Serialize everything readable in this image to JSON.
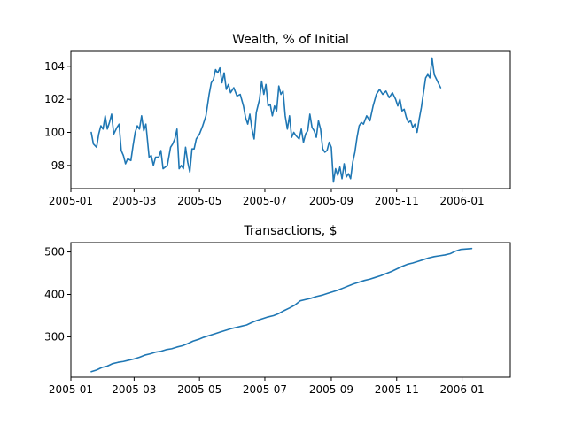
{
  "figure": {
    "background": "#ffffff",
    "line_color": "#1f77b4"
  },
  "chart_data": [
    {
      "type": "line",
      "title": "Wealth, % of Initial",
      "xlabel": "",
      "ylabel": "",
      "grid": false,
      "xlim": [
        "2005-01-01",
        "2006-02-15"
      ],
      "ylim": [
        96.6,
        104.9
      ],
      "x_ticks": [
        "2005-01",
        "2005-03",
        "2005-05",
        "2005-07",
        "2005-09",
        "2005-11",
        "2006-01"
      ],
      "y_ticks": [
        98,
        100,
        102,
        104
      ],
      "series": [
        {
          "name": "",
          "points": [
            [
              "2005-01-20",
              100.0
            ],
            [
              "2005-01-22",
              99.3
            ],
            [
              "2005-01-25",
              99.1
            ],
            [
              "2005-01-27",
              99.9
            ],
            [
              "2005-01-29",
              100.4
            ],
            [
              "2005-01-31",
              100.2
            ],
            [
              "2005-02-02",
              101.0
            ],
            [
              "2005-02-04",
              100.2
            ],
            [
              "2005-02-06",
              100.6
            ],
            [
              "2005-02-08",
              101.1
            ],
            [
              "2005-02-10",
              99.9
            ],
            [
              "2005-02-13",
              100.3
            ],
            [
              "2005-02-15",
              100.5
            ],
            [
              "2005-02-17",
              98.9
            ],
            [
              "2005-02-19",
              98.6
            ],
            [
              "2005-02-21",
              98.1
            ],
            [
              "2005-02-23",
              98.4
            ],
            [
              "2005-02-26",
              98.3
            ],
            [
              "2005-02-28",
              99.2
            ],
            [
              "2005-03-02",
              100.0
            ],
            [
              "2005-03-04",
              100.4
            ],
            [
              "2005-03-06",
              100.2
            ],
            [
              "2005-03-08",
              101.0
            ],
            [
              "2005-03-10",
              100.1
            ],
            [
              "2005-03-12",
              100.5
            ],
            [
              "2005-03-15",
              98.5
            ],
            [
              "2005-03-17",
              98.6
            ],
            [
              "2005-03-19",
              98.0
            ],
            [
              "2005-03-21",
              98.5
            ],
            [
              "2005-03-24",
              98.5
            ],
            [
              "2005-03-26",
              98.9
            ],
            [
              "2005-03-28",
              97.8
            ],
            [
              "2005-03-30",
              97.9
            ],
            [
              "2005-04-01",
              98.0
            ],
            [
              "2005-04-04",
              99.1
            ],
            [
              "2005-04-06",
              99.3
            ],
            [
              "2005-04-08",
              99.6
            ],
            [
              "2005-04-10",
              100.2
            ],
            [
              "2005-04-12",
              97.8
            ],
            [
              "2005-04-14",
              98.0
            ],
            [
              "2005-04-16",
              97.8
            ],
            [
              "2005-04-18",
              99.1
            ],
            [
              "2005-04-20",
              98.2
            ],
            [
              "2005-04-22",
              97.6
            ],
            [
              "2005-04-24",
              99.0
            ],
            [
              "2005-04-26",
              99.0
            ],
            [
              "2005-04-28",
              99.6
            ],
            [
              "2005-05-01",
              99.9
            ],
            [
              "2005-05-04",
              100.4
            ],
            [
              "2005-05-07",
              101.0
            ],
            [
              "2005-05-10",
              102.3
            ],
            [
              "2005-05-12",
              103.0
            ],
            [
              "2005-05-14",
              103.2
            ],
            [
              "2005-05-16",
              103.8
            ],
            [
              "2005-05-18",
              103.6
            ],
            [
              "2005-05-20",
              103.9
            ],
            [
              "2005-05-22",
              103.0
            ],
            [
              "2005-05-24",
              103.6
            ],
            [
              "2005-05-26",
              102.6
            ],
            [
              "2005-05-28",
              102.9
            ],
            [
              "2005-05-30",
              102.4
            ],
            [
              "2005-06-02",
              102.7
            ],
            [
              "2005-06-05",
              102.2
            ],
            [
              "2005-06-08",
              102.3
            ],
            [
              "2005-06-11",
              101.6
            ],
            [
              "2005-06-13",
              100.9
            ],
            [
              "2005-06-15",
              100.5
            ],
            [
              "2005-06-17",
              101.1
            ],
            [
              "2005-06-19",
              100.2
            ],
            [
              "2005-06-21",
              99.6
            ],
            [
              "2005-06-23",
              101.2
            ],
            [
              "2005-06-26",
              102.0
            ],
            [
              "2005-06-28",
              103.1
            ],
            [
              "2005-06-30",
              102.3
            ],
            [
              "2005-07-02",
              102.9
            ],
            [
              "2005-07-04",
              101.6
            ],
            [
              "2005-07-06",
              101.7
            ],
            [
              "2005-07-08",
              101.0
            ],
            [
              "2005-07-10",
              101.6
            ],
            [
              "2005-07-12",
              101.3
            ],
            [
              "2005-07-14",
              102.8
            ],
            [
              "2005-07-16",
              102.3
            ],
            [
              "2005-07-18",
              102.5
            ],
            [
              "2005-07-20",
              101.0
            ],
            [
              "2005-07-22",
              100.2
            ],
            [
              "2005-07-24",
              101.0
            ],
            [
              "2005-07-26",
              99.7
            ],
            [
              "2005-07-28",
              100.0
            ],
            [
              "2005-07-30",
              99.8
            ],
            [
              "2005-08-02",
              99.6
            ],
            [
              "2005-08-04",
              100.2
            ],
            [
              "2005-08-06",
              99.4
            ],
            [
              "2005-08-08",
              99.9
            ],
            [
              "2005-08-10",
              100.1
            ],
            [
              "2005-08-12",
              101.1
            ],
            [
              "2005-08-14",
              100.3
            ],
            [
              "2005-08-16",
              100.1
            ],
            [
              "2005-08-18",
              99.7
            ],
            [
              "2005-08-20",
              100.7
            ],
            [
              "2005-08-22",
              100.2
            ],
            [
              "2005-08-24",
              99.0
            ],
            [
              "2005-08-26",
              98.8
            ],
            [
              "2005-08-28",
              98.9
            ],
            [
              "2005-08-30",
              99.4
            ],
            [
              "2005-09-01",
              99.1
            ],
            [
              "2005-09-03",
              97.0
            ],
            [
              "2005-09-05",
              97.8
            ],
            [
              "2005-09-07",
              97.4
            ],
            [
              "2005-09-09",
              97.9
            ],
            [
              "2005-09-11",
              97.2
            ],
            [
              "2005-09-13",
              98.1
            ],
            [
              "2005-09-15",
              97.3
            ],
            [
              "2005-09-17",
              97.5
            ],
            [
              "2005-09-19",
              97.2
            ],
            [
              "2005-09-21",
              98.2
            ],
            [
              "2005-09-23",
              98.8
            ],
            [
              "2005-09-25",
              99.7
            ],
            [
              "2005-09-27",
              100.4
            ],
            [
              "2005-09-29",
              100.6
            ],
            [
              "2005-10-01",
              100.5
            ],
            [
              "2005-10-04",
              101.0
            ],
            [
              "2005-10-07",
              100.7
            ],
            [
              "2005-10-10",
              101.6
            ],
            [
              "2005-10-13",
              102.3
            ],
            [
              "2005-10-16",
              102.6
            ],
            [
              "2005-10-19",
              102.3
            ],
            [
              "2005-10-22",
              102.5
            ],
            [
              "2005-10-25",
              102.1
            ],
            [
              "2005-10-28",
              102.4
            ],
            [
              "2005-10-31",
              102.0
            ],
            [
              "2005-11-02",
              101.6
            ],
            [
              "2005-11-04",
              102.0
            ],
            [
              "2005-11-06",
              101.3
            ],
            [
              "2005-11-08",
              101.4
            ],
            [
              "2005-11-10",
              100.9
            ],
            [
              "2005-11-12",
              100.6
            ],
            [
              "2005-11-14",
              100.7
            ],
            [
              "2005-11-16",
              100.3
            ],
            [
              "2005-11-18",
              100.5
            ],
            [
              "2005-11-20",
              100.0
            ],
            [
              "2005-11-22",
              100.8
            ],
            [
              "2005-11-24",
              101.5
            ],
            [
              "2005-11-26",
              102.4
            ],
            [
              "2005-11-28",
              103.3
            ],
            [
              "2005-11-30",
              103.5
            ],
            [
              "2005-12-02",
              103.3
            ],
            [
              "2005-12-04",
              104.5
            ],
            [
              "2005-12-06",
              103.5
            ],
            [
              "2005-12-09",
              103.1
            ],
            [
              "2005-12-12",
              102.7
            ]
          ]
        }
      ]
    },
    {
      "type": "line",
      "title": "Transactions, $",
      "xlabel": "",
      "ylabel": "",
      "grid": false,
      "xlim": [
        "2005-01-01",
        "2006-02-15"
      ],
      "ylim": [
        205,
        522
      ],
      "x_ticks": [
        "2005-01",
        "2005-03",
        "2005-05",
        "2005-07",
        "2005-09",
        "2005-11",
        "2006-01"
      ],
      "y_ticks": [
        300,
        400,
        500
      ],
      "series": [
        {
          "name": "",
          "points": [
            [
              "2005-01-20",
              218
            ],
            [
              "2005-01-25",
              222
            ],
            [
              "2005-01-30",
              228
            ],
            [
              "2005-02-04",
              231
            ],
            [
              "2005-02-09",
              237
            ],
            [
              "2005-02-14",
              240
            ],
            [
              "2005-02-19",
              242
            ],
            [
              "2005-02-24",
              245
            ],
            [
              "2005-03-01",
              248
            ],
            [
              "2005-03-06",
              252
            ],
            [
              "2005-03-11",
              257
            ],
            [
              "2005-03-16",
              260
            ],
            [
              "2005-03-21",
              264
            ],
            [
              "2005-03-26",
              266
            ],
            [
              "2005-03-31",
              270
            ],
            [
              "2005-04-05",
              272
            ],
            [
              "2005-04-10",
              276
            ],
            [
              "2005-04-15",
              279
            ],
            [
              "2005-04-20",
              284
            ],
            [
              "2005-04-25",
              290
            ],
            [
              "2005-04-30",
              294
            ],
            [
              "2005-05-05",
              299
            ],
            [
              "2005-05-10",
              303
            ],
            [
              "2005-05-15",
              307
            ],
            [
              "2005-05-20",
              311
            ],
            [
              "2005-05-25",
              315
            ],
            [
              "2005-05-30",
              319
            ],
            [
              "2005-06-04",
              322
            ],
            [
              "2005-06-09",
              325
            ],
            [
              "2005-06-14",
              328
            ],
            [
              "2005-06-19",
              334
            ],
            [
              "2005-06-24",
              339
            ],
            [
              "2005-06-29",
              343
            ],
            [
              "2005-07-04",
              347
            ],
            [
              "2005-07-09",
              350
            ],
            [
              "2005-07-14",
              355
            ],
            [
              "2005-07-19",
              362
            ],
            [
              "2005-07-24",
              368
            ],
            [
              "2005-07-29",
              375
            ],
            [
              "2005-08-03",
              385
            ],
            [
              "2005-08-08",
              388
            ],
            [
              "2005-08-13",
              391
            ],
            [
              "2005-08-18",
              395
            ],
            [
              "2005-08-23",
              398
            ],
            [
              "2005-08-28",
              402
            ],
            [
              "2005-09-02",
              406
            ],
            [
              "2005-09-07",
              410
            ],
            [
              "2005-09-12",
              415
            ],
            [
              "2005-09-17",
              420
            ],
            [
              "2005-09-22",
              425
            ],
            [
              "2005-09-27",
              429
            ],
            [
              "2005-10-02",
              433
            ],
            [
              "2005-10-07",
              436
            ],
            [
              "2005-10-12",
              440
            ],
            [
              "2005-10-17",
              444
            ],
            [
              "2005-10-22",
              449
            ],
            [
              "2005-10-27",
              454
            ],
            [
              "2005-11-01",
              460
            ],
            [
              "2005-11-06",
              466
            ],
            [
              "2005-11-11",
              471
            ],
            [
              "2005-11-16",
              474
            ],
            [
              "2005-11-21",
              478
            ],
            [
              "2005-11-26",
              482
            ],
            [
              "2005-12-01",
              486
            ],
            [
              "2005-12-06",
              489
            ],
            [
              "2005-12-11",
              491
            ],
            [
              "2005-12-16",
              493
            ],
            [
              "2005-12-21",
              496
            ],
            [
              "2005-12-26",
              502
            ],
            [
              "2005-12-31",
              506
            ],
            [
              "2006-01-05",
              507
            ],
            [
              "2006-01-10",
              508
            ]
          ]
        }
      ]
    }
  ]
}
